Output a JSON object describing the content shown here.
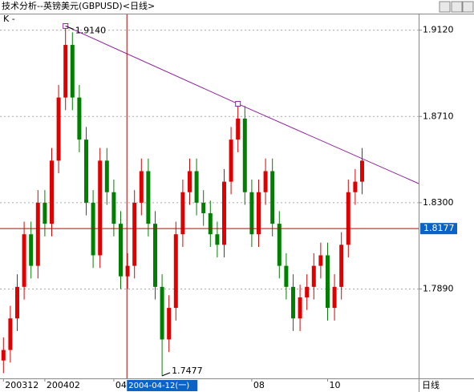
{
  "title": "技术分析--英镑美元(GBPUSD)<日线>",
  "chart_data": {
    "type": "candlestick",
    "legend_label": "K -",
    "categories": [
      null,
      null,
      null,
      null,
      null,
      null,
      null,
      null,
      null,
      null,
      null,
      null,
      null,
      null,
      null,
      null,
      null,
      null,
      null,
      null,
      null,
      null,
      null,
      null,
      null,
      null,
      null,
      null,
      null,
      null,
      null,
      null,
      null,
      null,
      null,
      null,
      null,
      null,
      null,
      null,
      null,
      null,
      null,
      null,
      null,
      null,
      null,
      null,
      null,
      null,
      null,
      null,
      null
    ],
    "open": [
      1.755,
      1.76,
      1.775,
      1.79,
      1.815,
      1.8,
      1.83,
      1.82,
      1.85,
      1.88,
      1.905,
      1.88,
      1.86,
      1.83,
      1.805,
      1.85,
      1.835,
      1.82,
      1.795,
      1.8,
      1.83,
      1.845,
      1.82,
      1.79,
      1.765,
      1.78,
      1.815,
      1.835,
      1.845,
      1.83,
      1.825,
      1.815,
      1.81,
      1.84,
      1.86,
      1.87,
      1.835,
      1.815,
      1.835,
      1.845,
      1.82,
      1.8,
      1.79,
      1.775,
      1.785,
      1.79,
      1.8,
      1.805,
      1.78,
      1.79,
      1.81,
      1.835,
      1.84
    ],
    "high": [
      1.766,
      1.781,
      1.796,
      1.821,
      1.821,
      1.836,
      1.836,
      1.856,
      1.886,
      1.914,
      1.911,
      1.886,
      1.866,
      1.836,
      1.856,
      1.856,
      1.841,
      1.826,
      1.806,
      1.836,
      1.851,
      1.851,
      1.826,
      1.796,
      1.786,
      1.821,
      1.841,
      1.851,
      1.851,
      1.836,
      1.831,
      1.821,
      1.846,
      1.866,
      1.877,
      1.876,
      1.841,
      1.841,
      1.851,
      1.851,
      1.826,
      1.806,
      1.796,
      1.791,
      1.796,
      1.806,
      1.811,
      1.811,
      1.796,
      1.816,
      1.841,
      1.846,
      1.856
    ],
    "low": [
      1.749,
      1.754,
      1.769,
      1.784,
      1.794,
      1.794,
      1.814,
      1.814,
      1.844,
      1.874,
      1.874,
      1.854,
      1.824,
      1.799,
      1.799,
      1.829,
      1.814,
      1.789,
      1.789,
      1.794,
      1.824,
      1.814,
      1.784,
      1.7477,
      1.759,
      1.774,
      1.809,
      1.829,
      1.824,
      1.819,
      1.809,
      1.804,
      1.804,
      1.834,
      1.854,
      1.829,
      1.809,
      1.809,
      1.829,
      1.814,
      1.794,
      1.784,
      1.769,
      1.769,
      1.779,
      1.784,
      1.794,
      1.774,
      1.774,
      1.784,
      1.804,
      1.829,
      1.834
    ],
    "close": [
      1.76,
      1.775,
      1.79,
      1.815,
      1.8,
      1.83,
      1.82,
      1.85,
      1.88,
      1.905,
      1.88,
      1.86,
      1.83,
      1.805,
      1.85,
      1.835,
      1.82,
      1.795,
      1.8,
      1.83,
      1.845,
      1.82,
      1.79,
      1.765,
      1.78,
      1.815,
      1.835,
      1.845,
      1.83,
      1.825,
      1.815,
      1.81,
      1.84,
      1.86,
      1.87,
      1.835,
      1.815,
      1.835,
      1.845,
      1.82,
      1.8,
      1.79,
      1.775,
      1.785,
      1.79,
      1.8,
      1.805,
      1.78,
      1.79,
      1.81,
      1.835,
      1.84,
      1.85
    ],
    "up_color": "#e00000",
    "down_color": "#008000",
    "xlim": [
      -0.5,
      60.2
    ],
    "xticks": [
      {
        "value": 0,
        "label": "200312"
      },
      {
        "value": 6,
        "label": "200402"
      },
      {
        "value": 16,
        "label": "04"
      },
      {
        "value": 36,
        "label": "08"
      },
      {
        "value": 47,
        "label": "10"
      }
    ],
    "x_unit_label": "日线",
    "ylim": [
      1.7465,
      1.9195
    ],
    "yticks": [
      {
        "value": 1.789,
        "label": "1.7890"
      },
      {
        "value": 1.83,
        "label": "1.8300"
      },
      {
        "value": 1.871,
        "label": "1.8710"
      },
      {
        "value": 1.912,
        "label": "1.9120"
      }
    ],
    "grid": true,
    "last_price": {
      "value": 1.8177,
      "label": "1.8177",
      "color": "#c00000"
    },
    "cursor": {
      "x": 17.9,
      "label": "2004-04-12(一)",
      "color": "#c00000"
    },
    "trendline": {
      "x": [
        9,
        34,
        60.2
      ],
      "y": [
        1.914,
        1.877,
        1.8391
      ],
      "color": "#9020a0"
    },
    "annotations": [
      {
        "x": 9,
        "y": 1.914,
        "label": "1.9140"
      },
      {
        "x": 23,
        "y": 1.7477,
        "label": "1.7477"
      }
    ]
  }
}
